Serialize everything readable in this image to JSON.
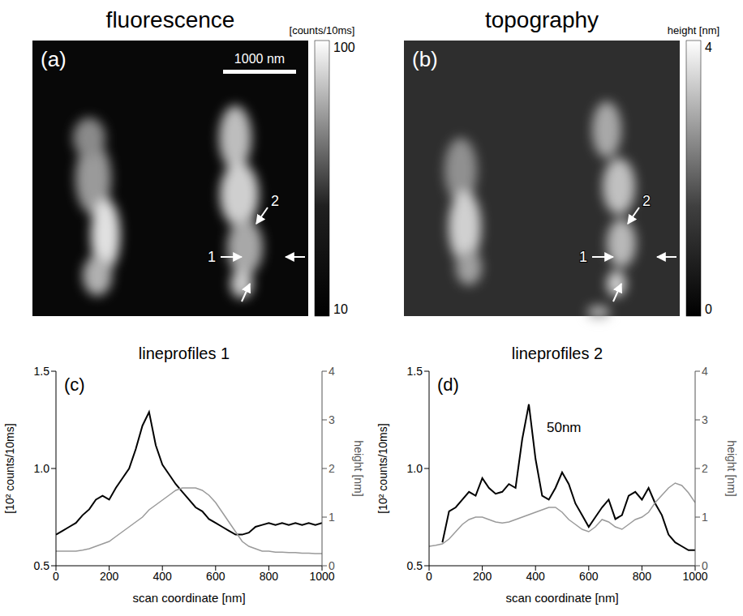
{
  "chart_data": [
    {
      "type": "image",
      "title": "fluorescence",
      "panel": "(a)",
      "colorbar_label": "[counts/10ms]",
      "colorbar_range": [
        10,
        100
      ],
      "colorbar_ticks": [
        10,
        100
      ],
      "scale_bar": "1000 nm",
      "annotations": [
        "1",
        "2"
      ]
    },
    {
      "type": "image",
      "title": "topography",
      "panel": "(b)",
      "colorbar_label": "height [nm]",
      "colorbar_range": [
        0,
        4
      ],
      "colorbar_ticks": [
        0,
        4
      ],
      "annotations": [
        "1",
        "2"
      ]
    },
    {
      "type": "line",
      "title": "lineprofiles 1",
      "panel": "(c)",
      "x_label": "scan coordinate [nm]",
      "y_label": "[10² counts/10ms]",
      "y2_label": "height [nm]",
      "x": [
        0,
        25,
        50,
        75,
        100,
        125,
        150,
        175,
        200,
        225,
        250,
        275,
        300,
        325,
        350,
        375,
        400,
        425,
        450,
        475,
        500,
        525,
        550,
        575,
        600,
        625,
        650,
        675,
        700,
        725,
        750,
        775,
        800,
        825,
        850,
        875,
        900,
        925,
        950,
        975,
        1000
      ],
      "xlim": [
        0,
        1000
      ],
      "xticks": [
        0,
        200,
        400,
        600,
        800,
        1000
      ],
      "ylim": [
        0.5,
        1.5
      ],
      "yticks": [
        0.5,
        {
          "value": 1,
          "label": "1.0"
        },
        1.5
      ],
      "y2lim": [
        0,
        4
      ],
      "y2ticks": [
        0,
        1,
        2,
        3,
        4
      ],
      "series": [
        {
          "color": "#000000",
          "values": [
            0.66,
            0.68,
            0.7,
            0.72,
            0.76,
            0.79,
            0.84,
            0.86,
            0.84,
            0.9,
            0.95,
            1.0,
            1.1,
            1.22,
            1.29,
            1.12,
            1.02,
            0.97,
            0.92,
            0.88,
            0.84,
            0.8,
            0.78,
            0.74,
            0.72,
            0.7,
            0.68,
            0.66,
            0.66,
            0.67,
            0.7,
            0.71,
            0.72,
            0.71,
            0.72,
            0.71,
            0.72,
            0.71,
            0.72,
            0.71,
            0.72
          ]
        },
        {
          "color": "#9a9a9a",
          "axis": "y2",
          "values": [
            0.3,
            0.3,
            0.3,
            0.3,
            0.32,
            0.35,
            0.4,
            0.45,
            0.5,
            0.6,
            0.7,
            0.8,
            0.9,
            1.0,
            1.15,
            1.25,
            1.35,
            1.45,
            1.55,
            1.6,
            1.6,
            1.6,
            1.55,
            1.45,
            1.3,
            1.1,
            0.9,
            0.7,
            0.5,
            0.4,
            0.35,
            0.3,
            0.3,
            0.28,
            0.28,
            0.27,
            0.27,
            0.26,
            0.26,
            0.25,
            0.25
          ]
        }
      ]
    },
    {
      "type": "line",
      "title": "lineprofiles 2",
      "panel": "(d)",
      "x_label": "scan coordinate [nm]",
      "y_label": "[10² counts/10ms]",
      "y2_label": "height [nm]",
      "annotations": [
        "50nm"
      ],
      "x": [
        0,
        25,
        50,
        75,
        100,
        125,
        150,
        175,
        200,
        225,
        250,
        275,
        300,
        325,
        350,
        375,
        400,
        425,
        450,
        475,
        500,
        525,
        550,
        575,
        600,
        625,
        650,
        675,
        700,
        725,
        750,
        775,
        800,
        825,
        850,
        875,
        900,
        925,
        950,
        975,
        1000
      ],
      "xlim": [
        0,
        1000
      ],
      "xticks": [
        0,
        200,
        400,
        600,
        800,
        1000
      ],
      "ylim": [
        0.5,
        1.5
      ],
      "yticks": [
        0.5,
        {
          "value": 1,
          "label": "1.0"
        },
        1.5
      ],
      "y2lim": [
        0,
        4
      ],
      "y2ticks": [
        0,
        1,
        2,
        3,
        4
      ],
      "series": [
        {
          "color": "#000000",
          "values": [
            null,
            null,
            0.62,
            0.78,
            0.8,
            0.84,
            0.88,
            0.86,
            0.95,
            0.9,
            0.87,
            0.88,
            0.92,
            0.9,
            1.15,
            1.33,
            1.05,
            0.86,
            0.84,
            0.9,
            0.98,
            0.92,
            0.82,
            0.76,
            0.7,
            0.75,
            0.8,
            0.84,
            0.74,
            0.76,
            0.86,
            0.88,
            0.84,
            0.9,
            0.82,
            0.76,
            0.66,
            0.62,
            0.6,
            0.58,
            0.58
          ]
        },
        {
          "color": "#9a9a9a",
          "axis": "y2",
          "values": [
            0.4,
            0.42,
            0.45,
            0.55,
            0.7,
            0.85,
            0.95,
            1.0,
            1.0,
            0.95,
            0.9,
            0.88,
            0.9,
            0.95,
            1.0,
            1.05,
            1.1,
            1.15,
            1.2,
            1.2,
            1.1,
            0.95,
            0.85,
            0.75,
            0.7,
            0.8,
            0.95,
            0.9,
            0.8,
            0.75,
            0.85,
            0.95,
            1.0,
            1.1,
            1.3,
            1.45,
            1.6,
            1.7,
            1.65,
            1.5,
            1.3
          ]
        }
      ]
    }
  ]
}
